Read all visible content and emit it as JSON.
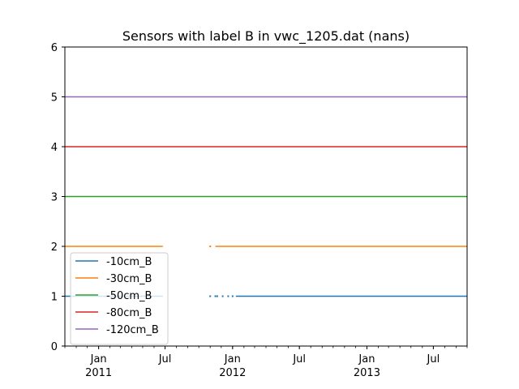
{
  "chart_data": {
    "type": "line",
    "title": "Sensors with label B in vwc_1205.dat (nans)",
    "xlabel": "",
    "ylabel": "",
    "xlim": [
      "2010-10-01",
      "2013-10-01"
    ],
    "ylim": [
      0,
      6
    ],
    "y_ticks": [
      0,
      1,
      2,
      3,
      4,
      5,
      6
    ],
    "x_major_ticks": [
      {
        "date": "2011-01-01",
        "label": "Jan",
        "sublabel": "2011"
      },
      {
        "date": "2011-07-01",
        "label": "Jul",
        "sublabel": ""
      },
      {
        "date": "2012-01-01",
        "label": "Jan",
        "sublabel": "2012"
      },
      {
        "date": "2012-07-01",
        "label": "Jul",
        "sublabel": ""
      },
      {
        "date": "2013-01-01",
        "label": "Jan",
        "sublabel": "2013"
      },
      {
        "date": "2013-07-01",
        "label": "Jul",
        "sublabel": ""
      }
    ],
    "grid": false,
    "legend_position": "lower-left",
    "series": [
      {
        "name": "-10cm_B",
        "color": "#1f77b4",
        "value": 1,
        "segments": [
          [
            "2010-10-01",
            "2011-06-25"
          ],
          [
            "2012-01-10",
            "2013-10-01"
          ]
        ],
        "markers": [
          "2011-11-01",
          "2011-11-15",
          "2011-11-20",
          "2011-12-05",
          "2011-12-20",
          "2012-01-01"
        ]
      },
      {
        "name": "-30cm_B",
        "color": "#ff7f0e",
        "value": 2,
        "segments": [
          [
            "2010-10-01",
            "2011-06-25"
          ],
          [
            "2011-11-15",
            "2013-10-01"
          ]
        ],
        "markers": [
          "2011-11-01"
        ]
      },
      {
        "name": "-50cm_B",
        "color": "#2ca02c",
        "value": 3,
        "segments": [
          [
            "2010-10-01",
            "2013-10-01"
          ]
        ],
        "markers": []
      },
      {
        "name": "-80cm_B",
        "color": "#d62728",
        "value": 4,
        "segments": [
          [
            "2010-10-01",
            "2013-10-01"
          ]
        ],
        "markers": []
      },
      {
        "name": "-120cm_B",
        "color": "#9467bd",
        "value": 5,
        "segments": [
          [
            "2010-10-01",
            "2013-10-01"
          ]
        ],
        "markers": []
      }
    ]
  }
}
